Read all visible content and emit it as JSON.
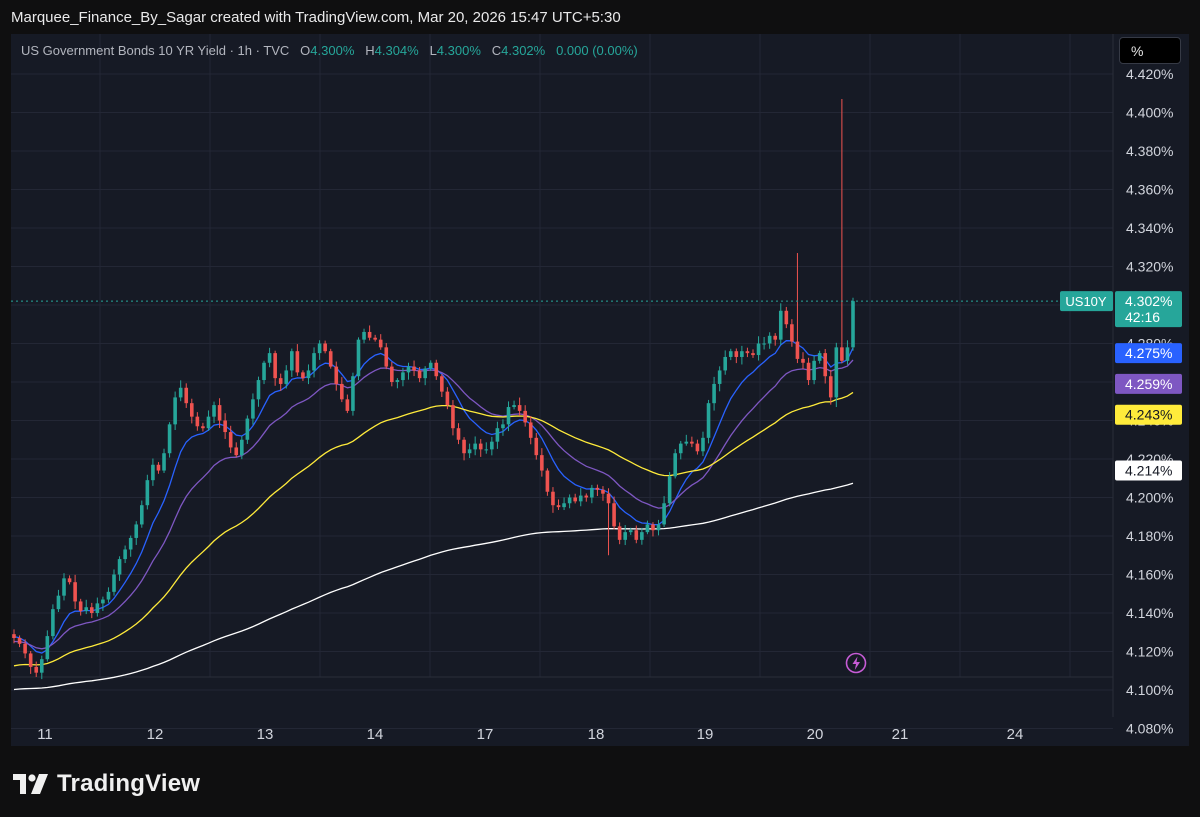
{
  "header": {
    "created_by": "Marquee_Finance_By_Sagar created with TradingView.com, Mar 20, 2026 15:47 UTC+5:30"
  },
  "legend": {
    "symbol": "US Government Bonds 10 YR Yield · 1h · TVC",
    "o_label": "O",
    "o_value": "4.300%",
    "h_label": "H",
    "h_value": "4.304%",
    "l_label": "L",
    "l_value": "4.300%",
    "c_label": "C",
    "c_value": "4.302%",
    "change": "0.000 (0.00%)"
  },
  "scale_button": "%",
  "brand": "TradingView",
  "colors": {
    "up": "#26a69a",
    "down": "#ef5350",
    "ma_fast": "#2962ff",
    "ma_mid": "#7e57c2",
    "ma_slow": "#ffeb3b",
    "ma_long": "#ffffff",
    "background": "#161a25"
  },
  "chart_data": {
    "type": "candlestick",
    "symbol_tag": "US10Y",
    "timeframe": "1h",
    "y_ticks": [
      "4.420%",
      "4.400%",
      "4.380%",
      "4.360%",
      "4.340%",
      "4.320%",
      "4.300%",
      "4.280%",
      "4.260%",
      "4.240%",
      "4.220%",
      "4.200%",
      "4.180%",
      "4.160%",
      "4.140%",
      "4.120%",
      "4.100%",
      "4.080%"
    ],
    "x_ticks": [
      "11",
      "12",
      "13",
      "14",
      "17",
      "18",
      "19",
      "20",
      "21",
      "24"
    ],
    "ylim": [
      4.073,
      4.426
    ],
    "last_price": {
      "tag": "US10Y",
      "value": "4.302%",
      "countdown": "42:16"
    },
    "ma_labels": [
      {
        "series": "ma_fast",
        "value": "4.275%"
      },
      {
        "series": "ma_mid",
        "value": "4.259%"
      },
      {
        "series": "ma_slow",
        "value": "4.243%"
      },
      {
        "series": "ma_long",
        "value": "4.214%"
      }
    ],
    "closes": [
      4.127,
      4.124,
      4.119,
      4.112,
      4.109,
      4.116,
      4.128,
      4.142,
      4.149,
      4.158,
      4.156,
      4.146,
      4.141,
      4.143,
      4.14,
      4.145,
      4.147,
      4.151,
      4.16,
      4.168,
      4.173,
      4.179,
      4.186,
      4.196,
      4.209,
      4.217,
      4.214,
      4.223,
      4.238,
      4.252,
      4.257,
      4.249,
      4.242,
      4.237,
      4.236,
      4.242,
      4.248,
      4.24,
      4.234,
      4.226,
      4.222,
      4.23,
      4.241,
      4.251,
      4.261,
      4.27,
      4.275,
      4.262,
      4.259,
      4.266,
      4.276,
      4.265,
      4.262,
      4.266,
      4.275,
      4.28,
      4.276,
      4.268,
      4.259,
      4.251,
      4.245,
      4.263,
      4.282,
      4.286,
      4.283,
      4.282,
      4.278,
      4.268,
      4.26,
      4.261,
      4.265,
      4.268,
      4.266,
      4.262,
      4.267,
      4.27,
      4.263,
      4.255,
      4.248,
      4.236,
      4.23,
      4.223,
      4.225,
      4.228,
      4.225,
      4.225,
      4.229,
      4.236,
      4.238,
      4.247,
      4.248,
      4.245,
      4.239,
      4.231,
      4.222,
      4.214,
      4.203,
      4.196,
      4.195,
      4.197,
      4.2,
      4.198,
      4.201,
      4.2,
      4.205,
      4.204,
      4.202,
      4.197,
      4.185,
      4.178,
      4.182,
      4.183,
      4.178,
      4.182,
      4.186,
      4.183,
      4.186,
      4.197,
      4.211,
      4.223,
      4.228,
      4.229,
      4.228,
      4.224,
      4.231,
      4.249,
      4.259,
      4.266,
      4.273,
      4.276,
      4.273,
      4.276,
      4.275,
      4.274,
      4.28,
      4.28,
      4.284,
      4.282,
      4.297,
      4.29,
      4.281,
      4.272,
      4.27,
      4.261,
      4.271,
      4.275,
      4.263,
      4.252,
      4.278,
      4.271,
      4.278,
      4.302
    ]
  }
}
